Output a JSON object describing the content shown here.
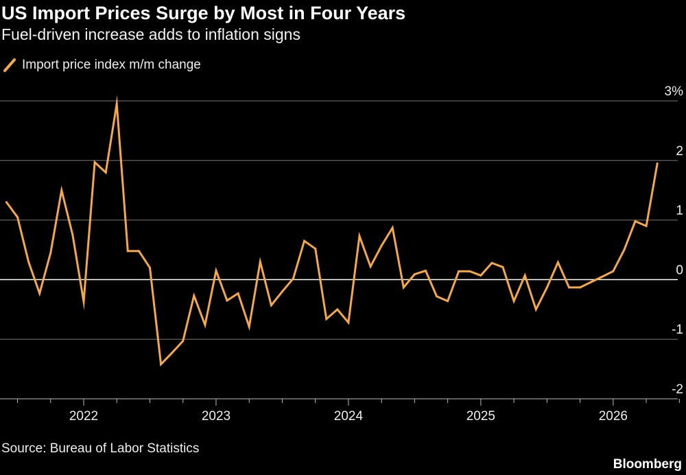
{
  "header": {
    "title": "US Import Prices Surge by Most in Four Years",
    "subtitle": "Fuel-driven increase adds to inflation signs"
  },
  "footer": {
    "source": "Source: Bureau of Labor Statistics",
    "brand": "Bloomberg"
  },
  "colors": {
    "line": "#f7a843",
    "background": "#000000",
    "zero_line": "#ffffff",
    "grid": "#777777"
  },
  "chart_data": {
    "type": "line",
    "title": "US Import Prices Surge by Most in Four Years",
    "subtitle": "Fuel-driven increase adds to inflation signs",
    "xlabel": "",
    "ylabel": "",
    "ylim": [
      -2,
      3
    ],
    "yticks": [
      3,
      2,
      1,
      0,
      -1,
      -2
    ],
    "ytick_labels": [
      "3%",
      "2",
      "1",
      "0",
      "-1",
      "-2"
    ],
    "xtick_labels": [
      "2022",
      "2023",
      "2024",
      "2025",
      "2026"
    ],
    "grid": true,
    "legend_placement": "top-left",
    "series": [
      {
        "name": "Import price index m/m change",
        "x": [
          "2021-06",
          "2021-07",
          "2021-08",
          "2021-09",
          "2021-10",
          "2021-11",
          "2021-12",
          "2022-01",
          "2022-02",
          "2022-03",
          "2022-04",
          "2022-05",
          "2022-06",
          "2022-07",
          "2022-08",
          "2022-09",
          "2022-10",
          "2022-11",
          "2022-12",
          "2023-01",
          "2023-02",
          "2023-03",
          "2023-04",
          "2023-05",
          "2023-06",
          "2023-07",
          "2023-08",
          "2023-09",
          "2023-10",
          "2023-11",
          "2023-12",
          "2024-01",
          "2024-02",
          "2024-03",
          "2024-04",
          "2024-05",
          "2024-06",
          "2024-07",
          "2024-08",
          "2024-09",
          "2024-10",
          "2024-11",
          "2024-12",
          "2025-01",
          "2025-02",
          "2025-03",
          "2025-04",
          "2025-05",
          "2025-06",
          "2025-07",
          "2025-08",
          "2025-09",
          "2025-10",
          "2025-11",
          "2025-12",
          "2026-01",
          "2026-02",
          "2026-03",
          "2026-04",
          "2026-05"
        ],
        "values": [
          1.3,
          1.05,
          0.3,
          -0.23,
          0.45,
          1.5,
          0.75,
          -0.37,
          1.97,
          1.8,
          2.95,
          0.48,
          0.48,
          0.2,
          -1.42,
          -1.23,
          -1.03,
          -0.27,
          -0.76,
          0.15,
          -0.35,
          -0.23,
          -0.79,
          0.3,
          -0.43,
          -0.2,
          0.02,
          0.65,
          0.52,
          -0.66,
          -0.5,
          -0.72,
          0.73,
          0.22,
          0.57,
          0.87,
          -0.13,
          0.09,
          0.15,
          -0.28,
          -0.36,
          0.14,
          0.14,
          0.07,
          0.28,
          0.21,
          -0.36,
          0.07,
          -0.5,
          -0.13,
          0.29,
          -0.13,
          -0.13,
          -0.04,
          0.05,
          0.14,
          0.5,
          0.98,
          0.9,
          1.95
        ]
      }
    ]
  }
}
